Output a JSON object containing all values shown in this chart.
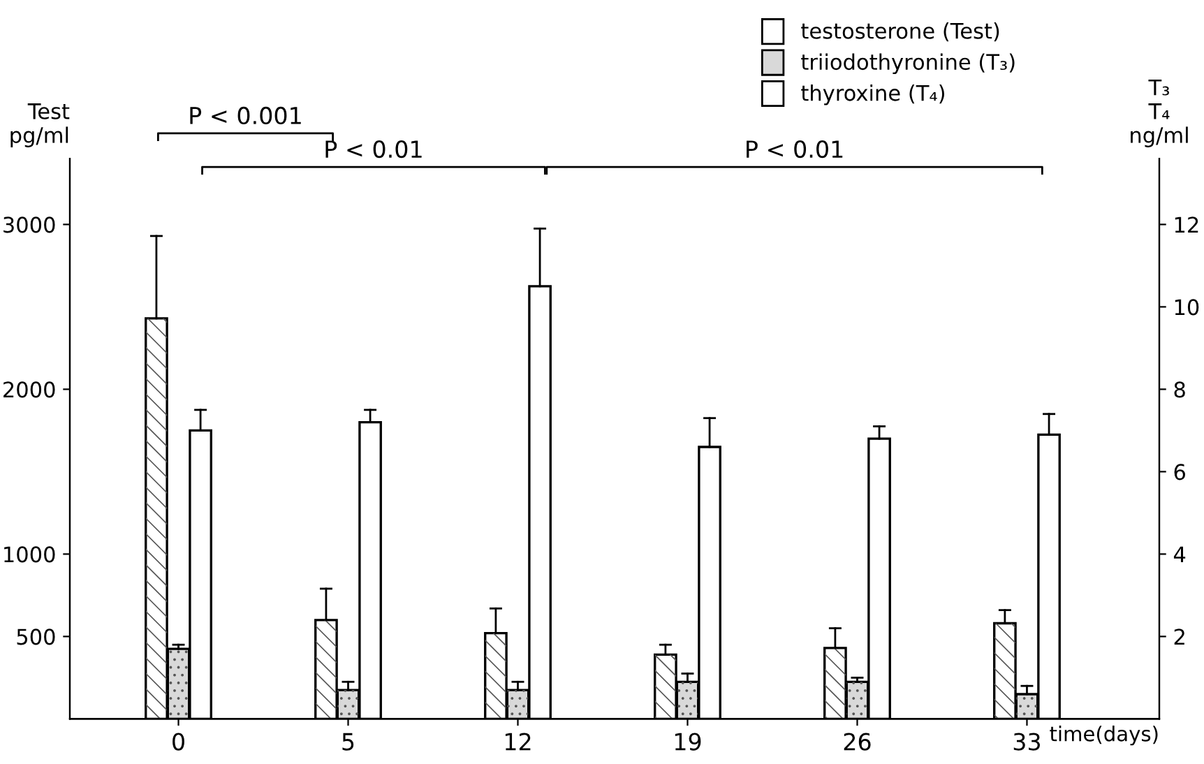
{
  "chart_data": {
    "type": "bar",
    "categories": [
      "0",
      "5",
      "12",
      "19",
      "26",
      "33"
    ],
    "xlabel": "time(days)",
    "ylabel": "Test pg/ml",
    "y2label": "T₃ T₄ ng/ml",
    "series": [
      {
        "name": "testosterone (Test)",
        "color": "#ffffff",
        "values": [
          2430,
          600,
          520,
          390,
          430,
          580
        ],
        "errors": [
          [
            2430,
            2930
          ],
          [
            600,
            790
          ],
          [
            520,
            670
          ],
          [
            390,
            450
          ],
          [
            430,
            550
          ],
          [
            580,
            660
          ]
        ]
      },
      {
        "name": "triiodothyronine (T₃)",
        "color": "#d9d9d9",
        "axis": "y2",
        "values": [
          1.7,
          0.7,
          0.7,
          0.9,
          0.9,
          0.6
        ],
        "errors": [
          [
            1.7,
            1.8
          ],
          [
            0.7,
            0.9
          ],
          [
            0.7,
            0.9
          ],
          [
            0.9,
            1.1
          ],
          [
            0.9,
            1.0
          ],
          [
            0.6,
            0.8
          ]
        ]
      },
      {
        "name": "thyroxine (T₄)",
        "color": "#ffffff",
        "axis": "y2",
        "values": [
          7.0,
          7.2,
          10.5,
          6.6,
          6.8,
          6.9
        ],
        "errors": [
          [
            7.0,
            7.5
          ],
          [
            7.2,
            7.5
          ],
          [
            10.5,
            11.9
          ],
          [
            6.6,
            7.3
          ],
          [
            6.8,
            7.1
          ],
          [
            6.9,
            7.4
          ]
        ]
      }
    ],
    "ylim": [
      0,
      3400
    ],
    "yticks": [
      500,
      1000,
      2000,
      3000
    ],
    "y2lim": [
      0,
      13.6
    ],
    "y2ticks": [
      2,
      4,
      6,
      8,
      10,
      12
    ],
    "annotations": [
      "P < 0.001",
      "P < 0.01",
      "P < 0.01"
    ],
    "legend": "top right",
    "grid": false
  }
}
